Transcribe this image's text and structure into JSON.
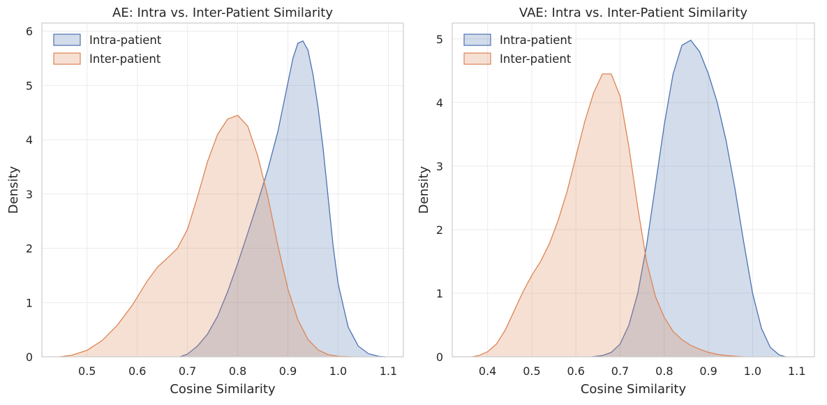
{
  "chart_data": [
    {
      "type": "area",
      "title": "AE: Intra vs. Inter-Patient Similarity",
      "xlabel": "Cosine Similarity",
      "ylabel": "Density",
      "xlim": [
        0.41,
        1.13
      ],
      "ylim": [
        0,
        6.15
      ],
      "xticks": [
        0.5,
        0.6,
        0.7,
        0.8,
        0.9,
        1.0,
        1.1
      ],
      "xtick_labels": [
        "0.5",
        "0.6",
        "0.7",
        "0.8",
        "0.9",
        "1.0",
        "1.1"
      ],
      "yticks": [
        0,
        1,
        2,
        3,
        4,
        5,
        6
      ],
      "ytick_labels": [
        "0",
        "1",
        "2",
        "3",
        "4",
        "5",
        "6"
      ],
      "grid": true,
      "legend_position": "top-left",
      "series": [
        {
          "name": "Intra-patient",
          "color": "#4C72B0",
          "x": [
            0.685,
            0.7,
            0.72,
            0.74,
            0.76,
            0.78,
            0.8,
            0.82,
            0.84,
            0.86,
            0.88,
            0.9,
            0.91,
            0.92,
            0.93,
            0.94,
            0.95,
            0.96,
            0.97,
            0.98,
            0.99,
            1.0,
            1.02,
            1.04,
            1.06,
            1.08,
            1.095
          ],
          "y": [
            0.0,
            0.05,
            0.2,
            0.42,
            0.75,
            1.2,
            1.72,
            2.28,
            2.85,
            3.45,
            4.15,
            5.05,
            5.5,
            5.78,
            5.82,
            5.65,
            5.2,
            4.6,
            3.85,
            2.95,
            2.05,
            1.35,
            0.55,
            0.2,
            0.06,
            0.01,
            0.0
          ]
        },
        {
          "name": "Inter-patient",
          "color": "#DD8452",
          "x": [
            0.445,
            0.47,
            0.5,
            0.53,
            0.56,
            0.59,
            0.62,
            0.64,
            0.66,
            0.68,
            0.7,
            0.72,
            0.74,
            0.76,
            0.78,
            0.8,
            0.82,
            0.84,
            0.86,
            0.88,
            0.9,
            0.92,
            0.94,
            0.96,
            0.98,
            1.0,
            1.03
          ],
          "y": [
            0.0,
            0.03,
            0.12,
            0.3,
            0.58,
            0.95,
            1.4,
            1.65,
            1.82,
            2.0,
            2.35,
            2.95,
            3.6,
            4.1,
            4.38,
            4.45,
            4.25,
            3.7,
            2.95,
            2.05,
            1.25,
            0.68,
            0.32,
            0.13,
            0.04,
            0.01,
            0.0
          ]
        }
      ]
    },
    {
      "type": "area",
      "title": "VAE: Intra vs. Inter-Patient Similarity",
      "xlabel": "Cosine Similarity",
      "ylabel": "Density",
      "xlim": [
        0.32,
        1.14
      ],
      "ylim": [
        0,
        5.25
      ],
      "xticks": [
        0.4,
        0.5,
        0.6,
        0.7,
        0.8,
        0.9,
        1.0,
        1.1
      ],
      "xtick_labels": [
        "0.4",
        "0.5",
        "0.6",
        "0.7",
        "0.8",
        "0.9",
        "1.0",
        "1.1"
      ],
      "yticks": [
        0,
        1,
        2,
        3,
        4,
        5
      ],
      "ytick_labels": [
        "0",
        "1",
        "2",
        "3",
        "4",
        "5"
      ],
      "grid": true,
      "legend_position": "top-left",
      "series": [
        {
          "name": "Intra-patient",
          "color": "#4C72B0",
          "x": [
            0.635,
            0.66,
            0.68,
            0.7,
            0.72,
            0.74,
            0.76,
            0.78,
            0.8,
            0.82,
            0.84,
            0.86,
            0.88,
            0.9,
            0.92,
            0.94,
            0.96,
            0.98,
            1.0,
            1.02,
            1.04,
            1.06,
            1.075
          ],
          "y": [
            0.0,
            0.02,
            0.07,
            0.2,
            0.5,
            1.0,
            1.75,
            2.7,
            3.65,
            4.45,
            4.9,
            4.98,
            4.8,
            4.45,
            4.0,
            3.4,
            2.65,
            1.8,
            1.0,
            0.45,
            0.15,
            0.03,
            0.0
          ]
        },
        {
          "name": "Inter-patient",
          "color": "#DD8452",
          "x": [
            0.365,
            0.38,
            0.4,
            0.42,
            0.44,
            0.46,
            0.48,
            0.5,
            0.52,
            0.54,
            0.56,
            0.58,
            0.6,
            0.62,
            0.64,
            0.66,
            0.68,
            0.7,
            0.72,
            0.74,
            0.76,
            0.78,
            0.8,
            0.82,
            0.84,
            0.86,
            0.88,
            0.9,
            0.92,
            0.94,
            0.96,
            0.98
          ],
          "y": [
            0.0,
            0.02,
            0.08,
            0.2,
            0.42,
            0.72,
            1.02,
            1.28,
            1.5,
            1.78,
            2.15,
            2.6,
            3.15,
            3.7,
            4.15,
            4.45,
            4.45,
            4.1,
            3.3,
            2.35,
            1.5,
            0.95,
            0.62,
            0.4,
            0.27,
            0.18,
            0.12,
            0.07,
            0.04,
            0.02,
            0.01,
            0.0
          ]
        }
      ]
    }
  ]
}
